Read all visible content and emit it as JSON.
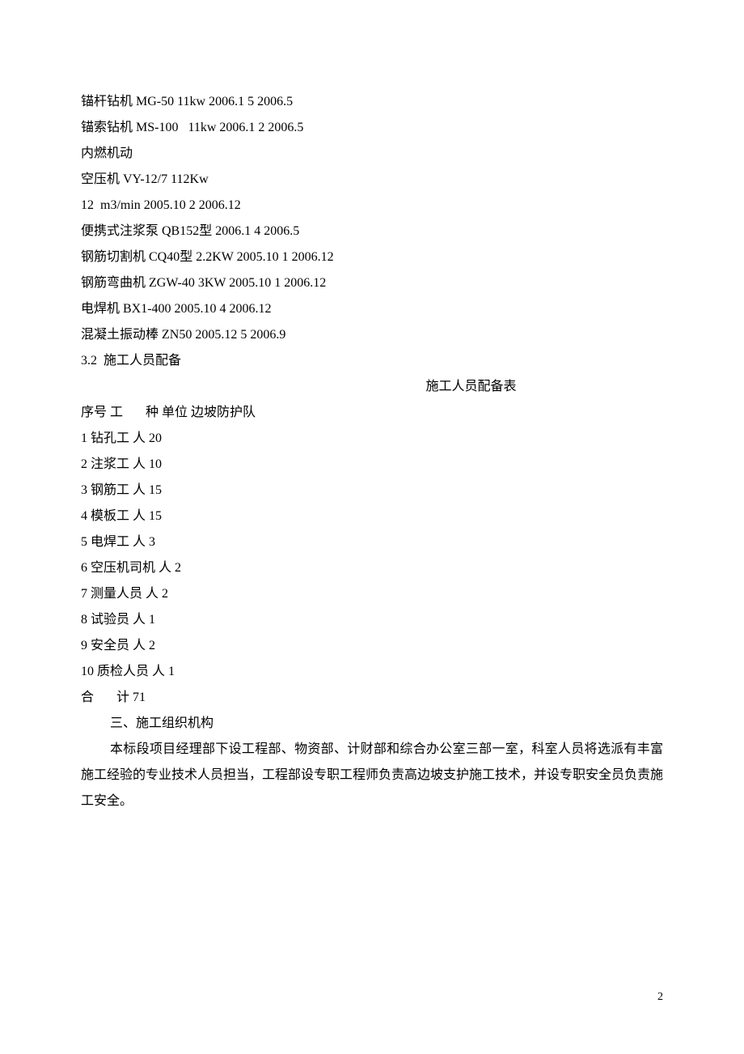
{
  "equipment": {
    "line1": "锚杆钻机 MG-50 11kw 2006.1 5 2006.5",
    "line2": "锚索钻机 MS-100   11kw 2006.1 2 2006.5",
    "line3": "内燃机动",
    "line4": "空压机 VY-12/7 112Kw",
    "line5": "12  m3/min 2005.10 2 2006.12",
    "line6": "便携式注浆泵 QB152型 2006.1 4 2006.5",
    "line7": "钢筋切割机 CQ40型 2.2KW 2005.10 1 2006.12",
    "line8": "钢筋弯曲机 ZGW-40 3KW 2005.10 1 2006.12",
    "line9": "电焊机 BX1-400 2005.10 4 2006.12",
    "line10": "混凝土振动棒 ZN50 2005.12 5 2006.9"
  },
  "section_3_2": {
    "heading": "3.2  施工人员配备",
    "table_title": "施工人员配备表",
    "header": "序号 工       种 单位 边坡防护队",
    "rows": [
      "1 钻孔工 人 20",
      "2 注浆工 人 10",
      "3 钢筋工 人 15",
      "4 模板工 人 15",
      "5 电焊工 人 3",
      "6 空压机司机 人 2",
      "7 测量人员 人 2",
      "8 试验员 人 1",
      "9 安全员 人 2",
      "10 质检人员 人 1"
    ],
    "total": "合       计 71"
  },
  "section_3": {
    "heading": "三、施工组织机构",
    "body": "本标段项目经理部下设工程部、物资部、计财部和综合办公室三部一室，科室人员将选派有丰富施工经验的专业技术人员担当，工程部设专职工程师负责高边坡支护施工技术，并设专职安全员负责施工安全。"
  },
  "page_number": "2"
}
